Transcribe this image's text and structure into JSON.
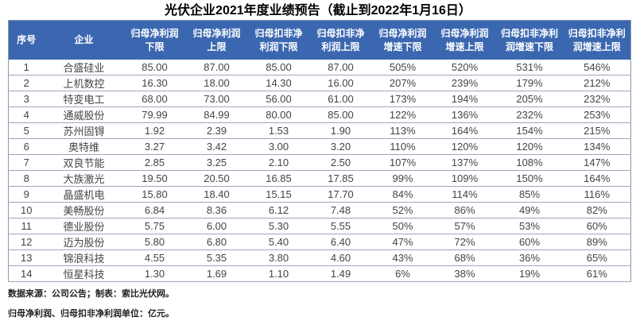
{
  "page": {
    "footnotes": [
      "数据来源：公司公告；制表：索比光伏网。",
      "归母净利润、归母扣非净利润单位：亿元。"
    ]
  },
  "colors": {
    "header_bg": "#3b67b0",
    "header_text": "#ffffff",
    "row_border": "#9aa9bb",
    "outer_border": "#8a9aac",
    "body_text": "#444444",
    "title_text": "#000000",
    "footnote_text": "#1f1f1f"
  },
  "chart_data": {
    "type": "table",
    "title": "光伏企业2021年度业绩预告（截止到2022年1月16日）",
    "columns": [
      "序号",
      "企业",
      "归母净利润\n下限",
      "归母净利润\n上限",
      "归母扣非净\n利润下限",
      "归母扣非净\n利润上限",
      "归母净利润\n增速下限",
      "归母净利润\n增速上限",
      "归母扣非净利\n润增速下限",
      "归母扣非净利\n润增速上限"
    ],
    "rows": [
      [
        "1",
        "合盛硅业",
        "85.00",
        "87.00",
        "85.00",
        "87.00",
        "505%",
        "520%",
        "531%",
        "546%"
      ],
      [
        "2",
        "上机数控",
        "16.30",
        "18.00",
        "14.30",
        "16.00",
        "207%",
        "239%",
        "179%",
        "212%"
      ],
      [
        "3",
        "特变电工",
        "68.00",
        "73.00",
        "56.00",
        "61.00",
        "173%",
        "194%",
        "205%",
        "232%"
      ],
      [
        "4",
        "通威股份",
        "79.99",
        "84.99",
        "80.00",
        "85.00",
        "122%",
        "136%",
        "232%",
        "253%"
      ],
      [
        "5",
        "苏州固锝",
        "1.92",
        "2.39",
        "1.53",
        "1.90",
        "113%",
        "164%",
        "154%",
        "215%"
      ],
      [
        "6",
        "奥特维",
        "3.27",
        "3.42",
        "3.00",
        "3.20",
        "110%",
        "120%",
        "120%",
        "134%"
      ],
      [
        "7",
        "双良节能",
        "2.85",
        "3.25",
        "2.10",
        "2.50",
        "107%",
        "137%",
        "108%",
        "147%"
      ],
      [
        "8",
        "大族激光",
        "19.50",
        "20.50",
        "16.85",
        "17.85",
        "99%",
        "109%",
        "150%",
        "164%"
      ],
      [
        "9",
        "晶盛机电",
        "15.80",
        "18.40",
        "15.15",
        "17.70",
        "84%",
        "114%",
        "85%",
        "116%"
      ],
      [
        "10",
        "美畅股份",
        "6.84",
        "8.36",
        "6.12",
        "7.48",
        "52%",
        "86%",
        "49%",
        "82%"
      ],
      [
        "11",
        "德业股份",
        "5.75",
        "6.00",
        "5.30",
        "5.55",
        "50%",
        "57%",
        "53%",
        "60%"
      ],
      [
        "12",
        "迈为股份",
        "5.80",
        "6.80",
        "5.40",
        "6.40",
        "47%",
        "72%",
        "60%",
        "89%"
      ],
      [
        "13",
        "锦浪科技",
        "4.55",
        "5.35",
        "3.80",
        "4.60",
        "43%",
        "68%",
        "36%",
        "65%"
      ],
      [
        "14",
        "恒星科技",
        "1.30",
        "1.69",
        "1.10",
        "1.49",
        "6%",
        "38%",
        "19%",
        "61%"
      ]
    ]
  }
}
